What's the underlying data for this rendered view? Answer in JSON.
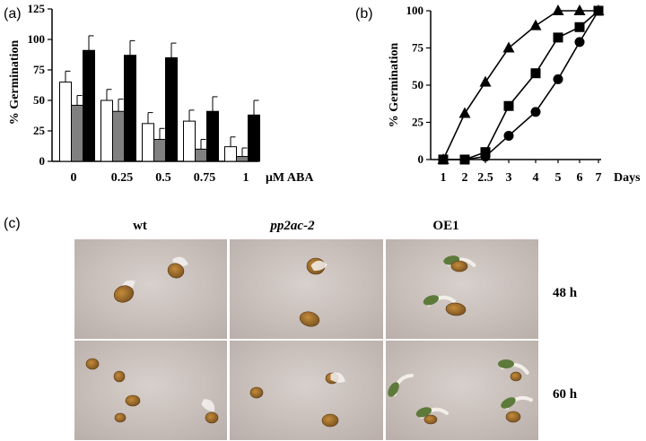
{
  "panels": {
    "a": {
      "tag": "(a)"
    },
    "b": {
      "tag": "(b)"
    },
    "c": {
      "tag": "(c)"
    }
  },
  "chart_data": [
    {
      "type": "bar",
      "panel": "(a)",
      "ylabel": "% Germination",
      "xlabel": "μM ABA",
      "categories": [
        "0",
        "0.25",
        "0.5",
        "0.75",
        "1"
      ],
      "yticks": [
        "0",
        "25",
        "50",
        "75",
        "100",
        "125"
      ],
      "ylim": [
        0,
        125
      ],
      "legend": "none",
      "grid": false,
      "series": [
        {
          "color": "#ffffff",
          "values": [
            65,
            50,
            31,
            33,
            12
          ],
          "errors": [
            9,
            9,
            9,
            9,
            8
          ]
        },
        {
          "color": "#808080",
          "values": [
            46,
            41,
            18,
            10,
            4
          ],
          "errors": [
            8,
            10,
            9,
            8,
            7
          ]
        },
        {
          "color": "#000000",
          "values": [
            91,
            87,
            85,
            41,
            38
          ],
          "errors": [
            12,
            12,
            12,
            12,
            12
          ]
        }
      ]
    },
    {
      "type": "line",
      "panel": "(b)",
      "ylabel": "% Germination",
      "xlabel": "Days",
      "x": [
        1,
        2,
        2.5,
        3,
        4,
        5,
        6,
        7
      ],
      "xticks": [
        "1",
        "2",
        "2.5",
        "3",
        "4",
        "5",
        "6",
        "7"
      ],
      "yticks": [
        "0",
        "25",
        "50",
        "75",
        "100"
      ],
      "ylim": [
        0,
        100
      ],
      "legend": "none",
      "grid": false,
      "series": [
        {
          "marker": "triangle",
          "values": [
            0,
            31,
            52,
            75,
            90,
            100,
            100,
            100
          ]
        },
        {
          "marker": "square",
          "values": [
            0,
            0,
            5,
            36,
            58,
            82,
            89,
            100
          ]
        },
        {
          "marker": "circle",
          "values": [
            0,
            0,
            2,
            16,
            32,
            54,
            79,
            100
          ]
        }
      ]
    }
  ],
  "photo_grid": {
    "columns": [
      "wt",
      "pp2ac-2",
      "OE1"
    ],
    "rows": [
      "48 h",
      "60 h"
    ]
  }
}
